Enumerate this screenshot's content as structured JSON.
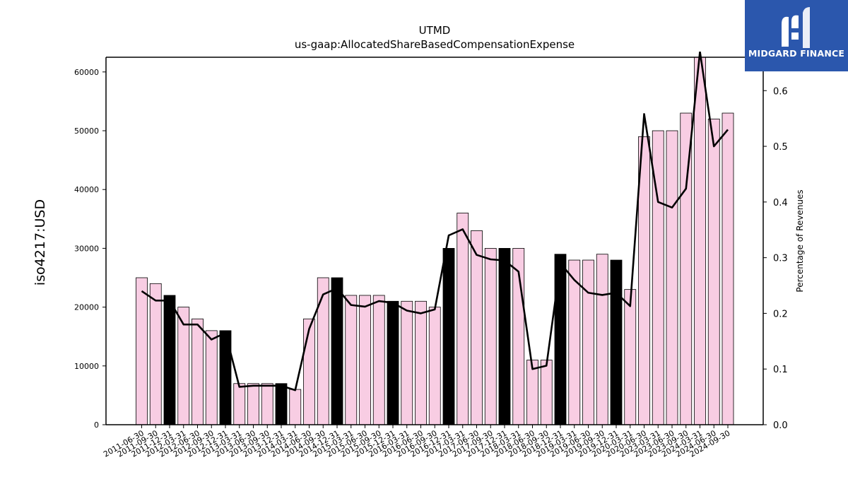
{
  "chart_data": {
    "type": "bar",
    "title": "UTMD",
    "subtitle": "us-gaap:AllocatedShareBasedCompensationExpense",
    "ylabel": "iso4217:USD",
    "y2label": "Percentage of Revenues",
    "ylim": [
      0,
      62500
    ],
    "y2lim": [
      0,
      0.66
    ],
    "yticks": [
      0,
      10000,
      20000,
      30000,
      40000,
      50000,
      60000
    ],
    "y2ticks": [
      "0.0",
      "0.1",
      "0.2",
      "0.3",
      "0.4",
      "0.5",
      "0.6"
    ],
    "categories": [
      "2011-06-30",
      "2011-09-30",
      "2011-12-31",
      "2012-03-31",
      "2012-06-30",
      "2012-09-30",
      "2012-12-31",
      "2013-03-31",
      "2013-06-30",
      "2013-09-30",
      "2013-12-31",
      "2014-03-31",
      "2014-06-30",
      "2014-09-30",
      "2014-12-31",
      "2015-03-31",
      "2015-06-30",
      "2015-09-30",
      "2015-12-31",
      "2016-03-31",
      "2016-06-30",
      "2016-09-30",
      "2016-12-31",
      "2017-03-31",
      "2017-06-30",
      "2017-09-30",
      "2017-12-31",
      "2018-03-31",
      "2018-06-30",
      "2018-09-30",
      "2018-12-31",
      "2019-03-31",
      "2019-06-30",
      "2019-09-30",
      "2019-12-31",
      "2020-03-31",
      "2020-06-30",
      "2023-03-31",
      "2023-06-30",
      "2023-09-30",
      "2024-03-31",
      "2024-06-30",
      "2024-09-30"
    ],
    "series": [
      {
        "kind": "bar",
        "values": [
          25000,
          24000,
          22000,
          20000,
          18000,
          16000,
          16000,
          7000,
          7000,
          7000,
          7000,
          6000,
          18000,
          25000,
          25000,
          22000,
          22000,
          22000,
          21000,
          21000,
          21000,
          20000,
          30000,
          36000,
          33000,
          30000,
          30000,
          30000,
          11000,
          11000,
          29000,
          28000,
          28000,
          29000,
          28000,
          23000,
          49000,
          50000,
          50000,
          53000,
          63000,
          52000,
          53000
        ],
        "annual": [
          false,
          false,
          true,
          false,
          false,
          false,
          true,
          false,
          false,
          false,
          true,
          false,
          false,
          false,
          true,
          false,
          false,
          false,
          true,
          false,
          false,
          false,
          true,
          false,
          false,
          false,
          true,
          false,
          false,
          false,
          true,
          false,
          false,
          false,
          true,
          false,
          false,
          false,
          false,
          false,
          false,
          false,
          false
        ]
      },
      {
        "kind": "line",
        "axis": "right",
        "values": [
          0.24,
          0.223,
          0.223,
          0.18,
          0.18,
          0.153,
          0.165,
          0.068,
          0.07,
          0.07,
          0.07,
          0.062,
          0.172,
          0.234,
          0.245,
          0.215,
          0.212,
          0.222,
          0.219,
          0.205,
          0.2,
          0.207,
          0.34,
          0.351,
          0.305,
          0.297,
          0.295,
          0.275,
          0.1,
          0.106,
          0.29,
          0.26,
          0.237,
          0.233,
          0.237,
          0.213,
          0.558,
          0.4,
          0.39,
          0.424,
          0.67,
          0.5,
          0.53
        ]
      }
    ],
    "colors": {
      "bar": "#f8cde3",
      "bar_annual": "#000000",
      "bar_edge": "#000000",
      "line": "#000000"
    },
    "grid": false
  },
  "logo": {
    "text": "MIDGARD FINANCE",
    "icon": "midgard-logo-icon"
  }
}
